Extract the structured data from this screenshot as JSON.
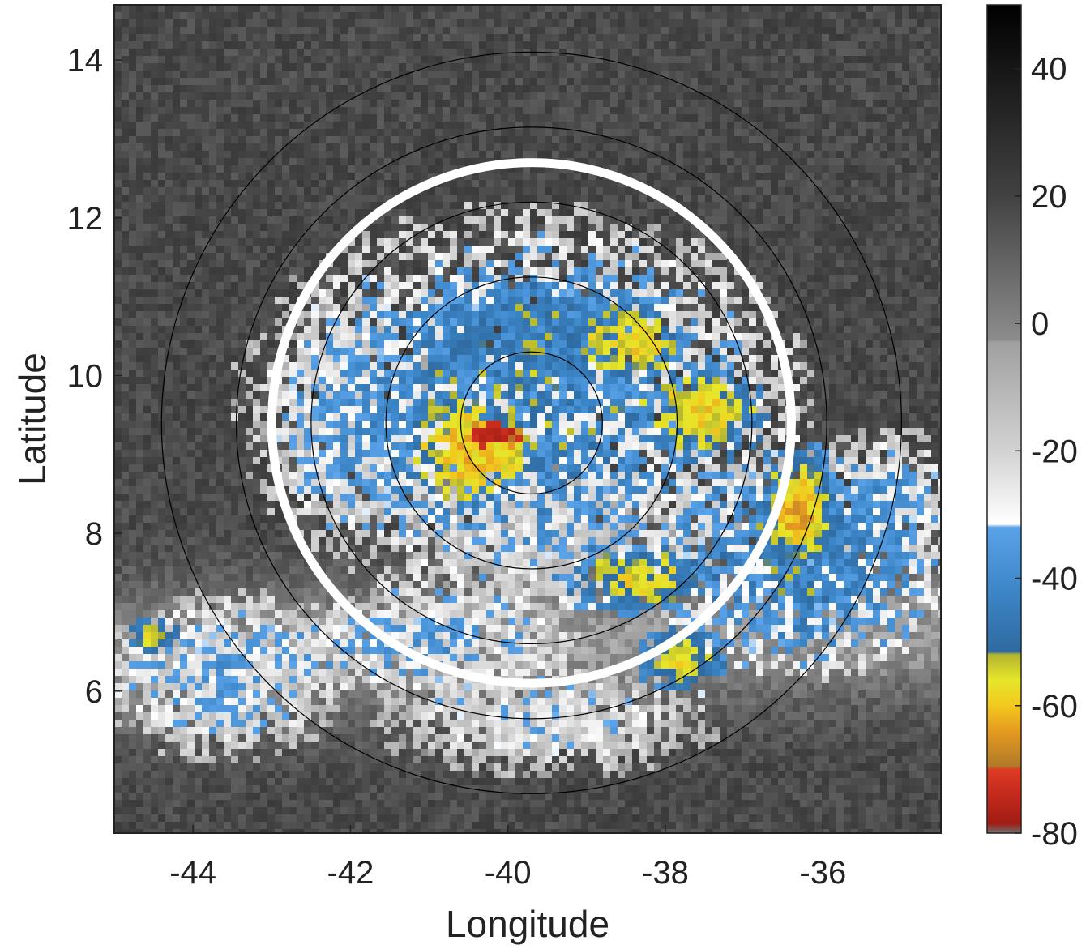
{
  "chart_data": {
    "type": "heatmap",
    "xlabel": "Longitude",
    "ylabel": "Latitude",
    "xlim": [
      -45.0,
      -34.5
    ],
    "ylim": [
      4.2,
      14.7
    ],
    "x_ticks": [
      {
        "value": -44,
        "label": "-44"
      },
      {
        "value": -42,
        "label": "-42"
      },
      {
        "value": -40,
        "label": "-40"
      },
      {
        "value": -38,
        "label": "-38"
      },
      {
        "value": -36,
        "label": "-36"
      }
    ],
    "y_ticks": [
      {
        "value": 6,
        "label": "6"
      },
      {
        "value": 8,
        "label": "8"
      },
      {
        "value": 10,
        "label": "10"
      },
      {
        "value": 12,
        "label": "12"
      },
      {
        "value": 14,
        "label": "14"
      }
    ],
    "colorbar": {
      "range": [
        -80,
        50
      ],
      "ticks": [
        {
          "value": 40,
          "label": "40"
        },
        {
          "value": 20,
          "label": "20"
        },
        {
          "value": 0,
          "label": "0"
        },
        {
          "value": -20,
          "label": "-20"
        },
        {
          "value": -40,
          "label": "-40"
        },
        {
          "value": -60,
          "label": "-60"
        },
        {
          "value": -80,
          "label": "-80"
        }
      ],
      "stops": [
        {
          "value": -80,
          "color": "#6e6e6e"
        },
        {
          "value": -78.5,
          "color": "#a01c14"
        },
        {
          "value": -74,
          "color": "#c42a1c"
        },
        {
          "value": -70,
          "color": "#de3a25"
        },
        {
          "value": -69.5,
          "color": "#b07a28"
        },
        {
          "value": -64,
          "color": "#e69a20"
        },
        {
          "value": -60,
          "color": "#f2c81e"
        },
        {
          "value": -56,
          "color": "#e6e62a"
        },
        {
          "value": -52,
          "color": "#b4b430"
        },
        {
          "value": -51.5,
          "color": "#2f6aa0"
        },
        {
          "value": -42,
          "color": "#3c86c8"
        },
        {
          "value": -32,
          "color": "#5aa2e8"
        },
        {
          "value": -31.5,
          "color": "#ffffff"
        },
        {
          "value": -20,
          "color": "#d2d2d2"
        },
        {
          "value": -3,
          "color": "#a0a0a0"
        },
        {
          "value": -2.5,
          "color": "#8c8c8c"
        },
        {
          "value": 20,
          "color": "#424242"
        },
        {
          "value": 50,
          "color": "#000000"
        }
      ]
    },
    "center": {
      "lon": -39.7,
      "lat": 9.4
    },
    "range_rings_deg": [
      0.9,
      1.85,
      2.8,
      3.75,
      4.7
    ],
    "highlight_ring_deg": 3.3,
    "colors": {
      "highlight_ring": "#ffffff",
      "range_rings": "#000000",
      "background": "#424242"
    },
    "clusters": [
      {
        "lon": -39.8,
        "lat": 9.6,
        "rx": 3.0,
        "ry": 2.1,
        "value": -40,
        "spread": 16
      },
      {
        "lon": -40.5,
        "lat": 9.0,
        "rx": 0.6,
        "ry": 0.6,
        "value": -60,
        "spread": 5
      },
      {
        "lon": -40.15,
        "lat": 9.25,
        "rx": 0.28,
        "ry": 0.18,
        "value": -77,
        "spread": 2
      },
      {
        "lon": -37.5,
        "lat": 9.5,
        "rx": 0.7,
        "ry": 0.5,
        "value": -58,
        "spread": 5
      },
      {
        "lon": -36.3,
        "lat": 8.3,
        "rx": 0.5,
        "ry": 0.8,
        "value": -63,
        "spread": 5
      },
      {
        "lon": -38.3,
        "lat": 7.4,
        "rx": 0.9,
        "ry": 0.4,
        "value": -56,
        "spread": 6
      },
      {
        "lon": -39.6,
        "lat": 8.0,
        "rx": 1.4,
        "ry": 0.9,
        "value": -16,
        "spread": 10
      },
      {
        "lon": -36.3,
        "lat": 7.6,
        "rx": 1.6,
        "ry": 1.2,
        "value": -42,
        "spread": 12
      },
      {
        "lon": -39.5,
        "lat": 10.6,
        "rx": 1.6,
        "ry": 0.6,
        "value": -44,
        "spread": 10
      },
      {
        "lon": -38.4,
        "lat": 10.4,
        "rx": 0.6,
        "ry": 0.4,
        "value": -57,
        "spread": 5
      },
      {
        "lon": -43.6,
        "lat": 6.2,
        "rx": 1.3,
        "ry": 0.9,
        "value": -30,
        "spread": 14
      },
      {
        "lon": -41.0,
        "lat": 6.6,
        "rx": 1.6,
        "ry": 0.6,
        "value": -30,
        "spread": 14
      },
      {
        "lon": -39.5,
        "lat": 5.6,
        "rx": 1.8,
        "ry": 0.6,
        "value": -25,
        "spread": 14
      },
      {
        "lon": -37.8,
        "lat": 6.4,
        "rx": 0.5,
        "ry": 0.4,
        "value": -57,
        "spread": 4
      },
      {
        "lon": -44.5,
        "lat": 6.7,
        "rx": 0.3,
        "ry": 0.2,
        "value": -57,
        "spread": 4
      },
      {
        "lon": -42.0,
        "lat": 9.5,
        "rx": 0.9,
        "ry": 1.2,
        "value": -30,
        "spread": 14
      },
      {
        "lon": -35.2,
        "lat": 8.4,
        "rx": 0.8,
        "ry": 0.8,
        "value": -35,
        "spread": 12
      }
    ]
  }
}
